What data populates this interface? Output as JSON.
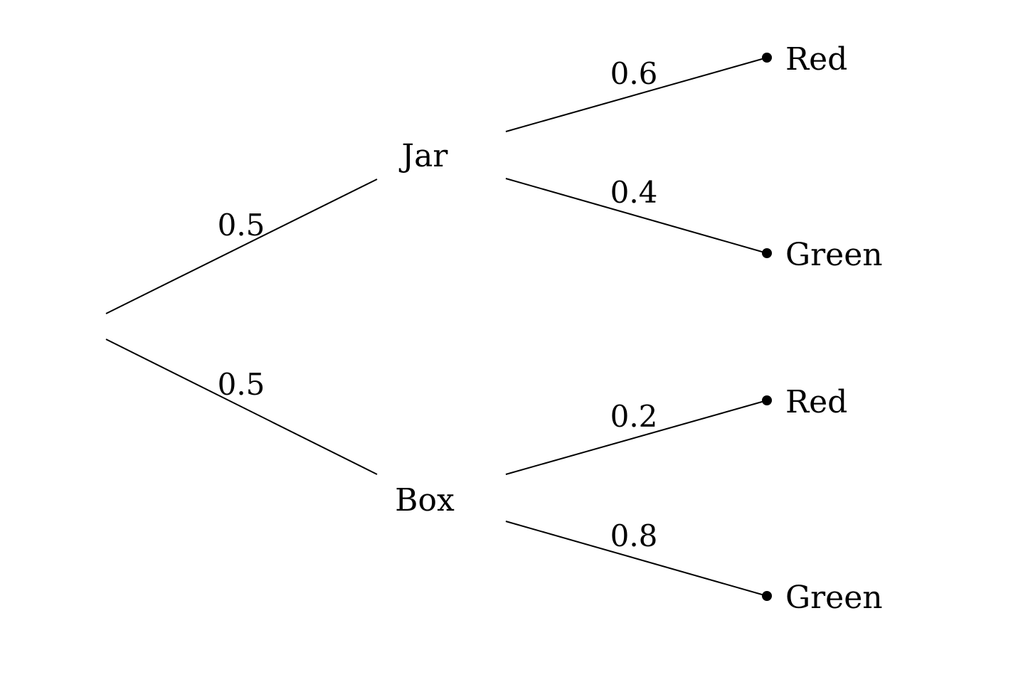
{
  "tree": {
    "level1": [
      {
        "node": "Jar",
        "probability": "0.5"
      },
      {
        "node": "Box",
        "probability": "0.5"
      }
    ],
    "level2": {
      "jar": [
        {
          "outcome": "Red",
          "probability": "0.6"
        },
        {
          "outcome": "Green",
          "probability": "0.4"
        }
      ],
      "box": [
        {
          "outcome": "Red",
          "probability": "0.2"
        },
        {
          "outcome": "Green",
          "probability": "0.8"
        }
      ]
    }
  }
}
